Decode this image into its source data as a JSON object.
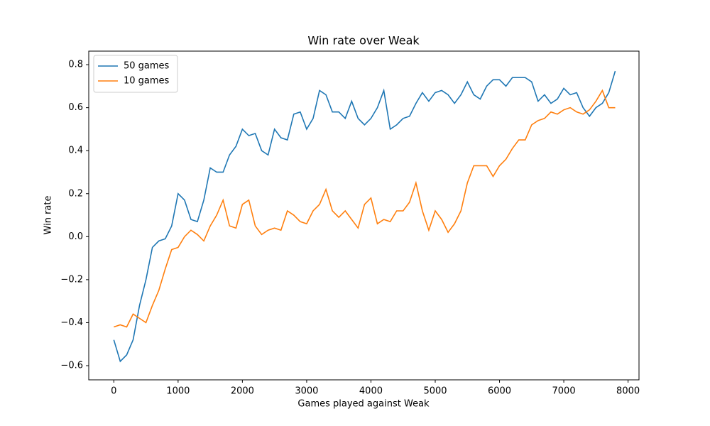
{
  "chart_data": {
    "type": "line",
    "title": "Win rate over Weak",
    "xlabel": "Games played against Weak",
    "ylabel": "Win rate",
    "x": [
      0,
      100,
      200,
      300,
      400,
      500,
      600,
      700,
      800,
      900,
      1000,
      1100,
      1200,
      1300,
      1400,
      1500,
      1600,
      1700,
      1800,
      1900,
      2000,
      2100,
      2200,
      2300,
      2400,
      2500,
      2600,
      2700,
      2800,
      2900,
      3000,
      3100,
      3200,
      3300,
      3400,
      3500,
      3600,
      3700,
      3800,
      3900,
      4000,
      4100,
      4200,
      4300,
      4400,
      4500,
      4600,
      4700,
      4800,
      4900,
      5000,
      5100,
      5200,
      5300,
      5400,
      5500,
      5600,
      5700,
      5800,
      5900,
      6000,
      6100,
      6200,
      6300,
      6400,
      6500,
      6600,
      6700,
      6800,
      6900,
      7000,
      7100,
      7200,
      7300,
      7400,
      7500,
      7600,
      7700,
      7800
    ],
    "series": [
      {
        "name": "50 games",
        "color": "#1f77b4",
        "values": [
          -0.48,
          -0.58,
          -0.55,
          -0.48,
          -0.32,
          -0.2,
          -0.05,
          -0.02,
          -0.01,
          0.05,
          0.2,
          0.17,
          0.08,
          0.07,
          0.17,
          0.32,
          0.3,
          0.3,
          0.38,
          0.42,
          0.5,
          0.47,
          0.48,
          0.4,
          0.38,
          0.5,
          0.46,
          0.45,
          0.57,
          0.58,
          0.5,
          0.55,
          0.68,
          0.66,
          0.58,
          0.58,
          0.55,
          0.63,
          0.55,
          0.52,
          0.55,
          0.6,
          0.68,
          0.5,
          0.52,
          0.55,
          0.56,
          0.62,
          0.67,
          0.63,
          0.67,
          0.68,
          0.66,
          0.62,
          0.66,
          0.72,
          0.66,
          0.64,
          0.7,
          0.73,
          0.73,
          0.7,
          0.74,
          0.74,
          0.74,
          0.72,
          0.63,
          0.66,
          0.62,
          0.64,
          0.69,
          0.66,
          0.67,
          0.6,
          0.56,
          0.6,
          0.62,
          0.67,
          0.77
        ]
      },
      {
        "name": "10 games",
        "color": "#ff7f0e",
        "values": [
          -0.42,
          -0.41,
          -0.42,
          -0.36,
          -0.38,
          -0.4,
          -0.32,
          -0.25,
          -0.15,
          -0.06,
          -0.05,
          0.0,
          0.03,
          0.01,
          -0.02,
          0.05,
          0.1,
          0.17,
          0.05,
          0.04,
          0.15,
          0.17,
          0.05,
          0.01,
          0.03,
          0.04,
          0.03,
          0.12,
          0.1,
          0.07,
          0.06,
          0.12,
          0.15,
          0.22,
          0.12,
          0.09,
          0.12,
          0.08,
          0.04,
          0.15,
          0.18,
          0.06,
          0.08,
          0.07,
          0.12,
          0.12,
          0.16,
          0.25,
          0.12,
          0.03,
          0.12,
          0.08,
          0.02,
          0.06,
          0.12,
          0.25,
          0.33,
          0.33,
          0.33,
          0.28,
          0.33,
          0.36,
          0.41,
          0.45,
          0.45,
          0.52,
          0.54,
          0.55,
          0.58,
          0.57,
          0.59,
          0.6,
          0.58,
          0.57,
          0.59,
          0.63,
          0.68,
          0.6,
          0.6
        ]
      }
    ],
    "xlim": [
      -390,
      8170
    ],
    "ylim": [
      -0.666,
      0.863
    ],
    "xticks": [
      0,
      1000,
      2000,
      3000,
      4000,
      5000,
      6000,
      7000,
      8000
    ],
    "yticks": [
      {
        "value": -0.6,
        "label": "−0.6"
      },
      {
        "value": -0.4,
        "label": "−0.4"
      },
      {
        "value": -0.2,
        "label": "−0.2"
      },
      {
        "value": 0.0,
        "label": "0.0"
      },
      0.2,
      0.4,
      0.6,
      0.8
    ],
    "grid": false,
    "legend": "upper-left"
  }
}
